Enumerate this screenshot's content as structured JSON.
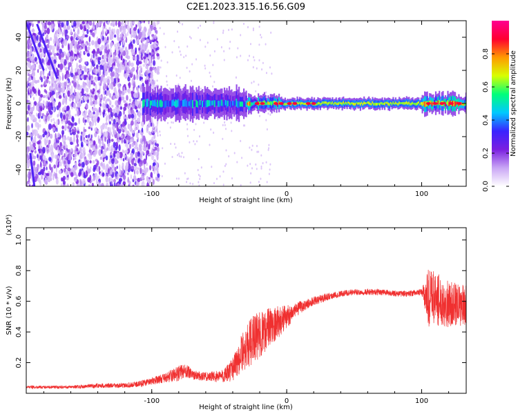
{
  "title": "C2E1.2023.315.16.56.G09",
  "chart_data": [
    {
      "type": "heatmap",
      "name": "spectrogram",
      "xlabel": "Height of straight line (km)",
      "ylabel": "Frequency (Hz)",
      "xlim": [
        -193,
        133
      ],
      "ylim": [
        -50,
        50
      ],
      "xticks": [
        -100,
        0,
        100
      ],
      "xtick_labels": [
        "-100",
        "0",
        "100"
      ],
      "yticks": [
        -40,
        -20,
        0,
        20,
        40
      ],
      "ytick_labels": [
        "-40",
        "-20",
        "0",
        "20",
        "40"
      ],
      "grid": false,
      "colorbar": {
        "label": "Normalized spectral amplitude",
        "range": [
          0.0,
          1.0
        ],
        "ticks": [
          0.0,
          0.2,
          0.4,
          0.6,
          0.8
        ],
        "tick_labels": [
          "0.0",
          "0.2",
          "0.4",
          "0.6",
          "0.8"
        ],
        "colormap": [
          "#ffffff",
          "#c9a6f5",
          "#7b1fe0",
          "#3a22ff",
          "#00c8ff",
          "#00ff7a",
          "#d8ff00",
          "#ff9a00",
          "#ff0030",
          "#ff0090"
        ]
      },
      "features": [
        {
          "description": "scattered noise",
          "x_range": [
            -193,
            -105
          ],
          "freq_range": [
            -50,
            50
          ],
          "amplitude": 0.15
        },
        {
          "description": "signal band",
          "x_range": [
            -107,
            133
          ],
          "center_freq_hz": 0,
          "amplitude": 0.9
        }
      ]
    },
    {
      "type": "line",
      "name": "snr",
      "xlabel": "Height of straight line (km)",
      "ylabel": "SNR (10 * v/v)",
      "y_scale_label": "(x10⁴)",
      "xlim": [
        -193,
        133
      ],
      "ylim": [
        0.0,
        1.08
      ],
      "xticks": [
        -100,
        0,
        100
      ],
      "xtick_labels": [
        "-100",
        "0",
        "100"
      ],
      "yticks": [
        0.2,
        0.4,
        0.6,
        0.8,
        1.0
      ],
      "ytick_labels": [
        "0.2",
        "0.4",
        "0.6",
        "0.8",
        "1.0"
      ],
      "grid": false,
      "line_color": "#f03030",
      "x": [
        -193,
        -180,
        -160,
        -140,
        -120,
        -110,
        -100,
        -90,
        -80,
        -75,
        -70,
        -60,
        -50,
        -45,
        -40,
        -35,
        -30,
        -25,
        -20,
        -15,
        -10,
        -5,
        0,
        5,
        10,
        15,
        20,
        30,
        40,
        50,
        60,
        70,
        80,
        90,
        100,
        105,
        110,
        115,
        120,
        125,
        130,
        133
      ],
      "values": [
        0.04,
        0.04,
        0.04,
        0.05,
        0.05,
        0.06,
        0.08,
        0.1,
        0.13,
        0.15,
        0.12,
        0.11,
        0.11,
        0.12,
        0.16,
        0.24,
        0.3,
        0.35,
        0.38,
        0.42,
        0.45,
        0.47,
        0.5,
        0.53,
        0.56,
        0.58,
        0.6,
        0.63,
        0.65,
        0.66,
        0.66,
        0.66,
        0.65,
        0.65,
        0.66,
        0.62,
        0.62,
        0.6,
        0.58,
        0.58,
        0.57,
        0.58
      ],
      "noise": [
        0.01,
        0.01,
        0.01,
        0.015,
        0.015,
        0.02,
        0.025,
        0.03,
        0.05,
        0.05,
        0.03,
        0.03,
        0.04,
        0.05,
        0.08,
        0.12,
        0.14,
        0.16,
        0.15,
        0.14,
        0.12,
        0.1,
        0.08,
        0.05,
        0.04,
        0.03,
        0.03,
        0.025,
        0.02,
        0.02,
        0.02,
        0.02,
        0.02,
        0.02,
        0.02,
        0.2,
        0.18,
        0.16,
        0.15,
        0.14,
        0.14,
        0.13
      ]
    }
  ]
}
